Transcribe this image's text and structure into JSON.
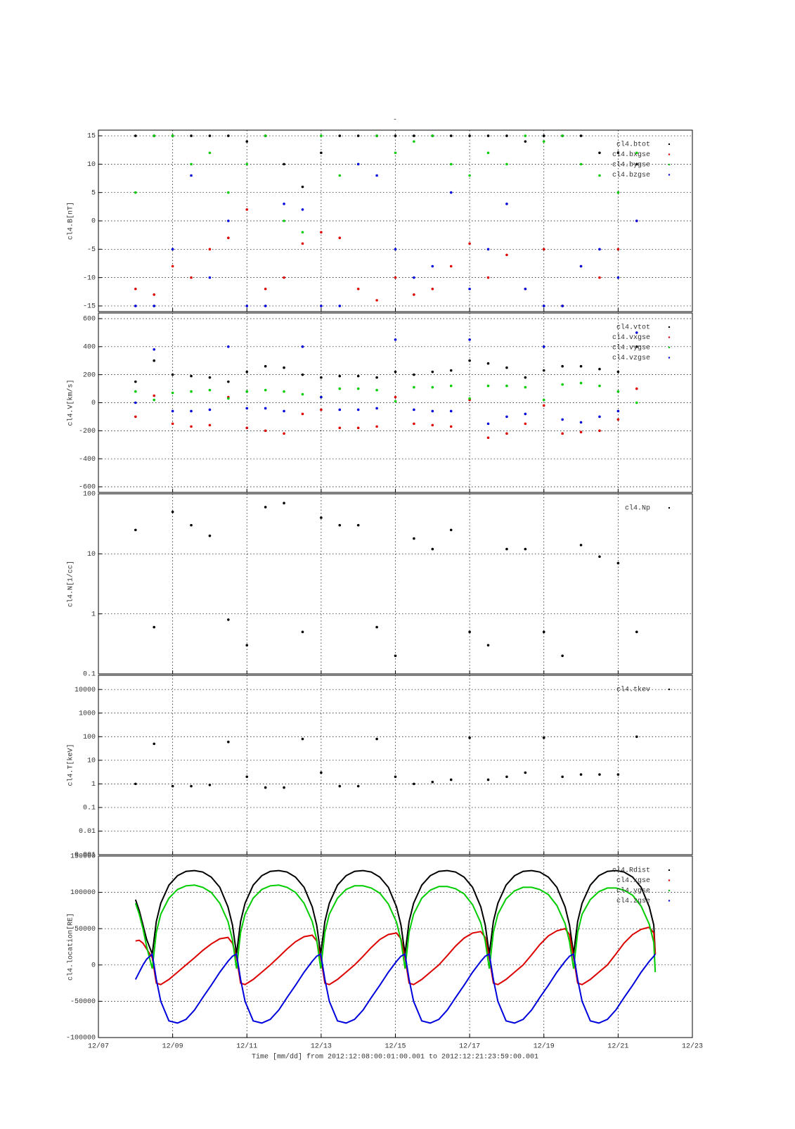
{
  "title": "-",
  "x_axis": {
    "label": "Time [mm/dd]  from 2012:12:08:00:01:00.001  to  2012:12:21:23:59:00.001",
    "xlim": [
      7,
      23
    ],
    "xticks": [
      {
        "value": 7,
        "label": "12/07"
      },
      {
        "value": 9,
        "label": "12/09"
      },
      {
        "value": 11,
        "label": "12/11"
      },
      {
        "value": 13,
        "label": "12/13"
      },
      {
        "value": 15,
        "label": "12/15"
      },
      {
        "value": 17,
        "label": "12/17"
      },
      {
        "value": 19,
        "label": "12/19"
      },
      {
        "value": 21,
        "label": "12/21"
      },
      {
        "value": 23,
        "label": "12/23"
      }
    ]
  },
  "chart_data": [
    {
      "type": "scatter",
      "y_label": "cl4.B[nT]",
      "ylim": [
        -16,
        16
      ],
      "yticks": [
        -15,
        -10,
        -5,
        0,
        5,
        10,
        15
      ],
      "grid": true,
      "x": [
        8,
        8.5,
        9,
        9.5,
        10,
        10.5,
        11,
        11.5,
        12,
        12.5,
        13,
        13.5,
        14,
        14.5,
        15,
        15.5,
        16,
        16.5,
        17,
        17.5,
        18,
        18.5,
        19,
        19.5,
        20,
        20.5,
        21,
        21.5,
        22
      ],
      "series": [
        {
          "name": "cl4.btot",
          "color": "#000000",
          "values": [
            15,
            15,
            15,
            15,
            15,
            15,
            14,
            15,
            10,
            6,
            12,
            15,
            15,
            15,
            15,
            15,
            15,
            15,
            15,
            15,
            15,
            14,
            15,
            15,
            15,
            12,
            12,
            10,
            null
          ]
        },
        {
          "name": "cl4.bxgse",
          "color": "#dd0000",
          "values": [
            -12,
            -13,
            -8,
            -10,
            -5,
            -3,
            2,
            -12,
            -10,
            -4,
            -2,
            -3,
            -12,
            -14,
            -10,
            -13,
            -12,
            -8,
            -4,
            -10,
            -6,
            -12,
            -5,
            -15,
            -8,
            -10,
            -5,
            0,
            null
          ]
        },
        {
          "name": "cl4.bygse",
          "color": "#00cc00",
          "values": [
            5,
            15,
            15,
            10,
            12,
            5,
            10,
            15,
            0,
            -2,
            15,
            8,
            10,
            15,
            12,
            14,
            15,
            10,
            8,
            12,
            10,
            15,
            14,
            15,
            10,
            8,
            5,
            12,
            null
          ]
        },
        {
          "name": "cl4.bzgse",
          "color": "#0000dd",
          "values": [
            -15,
            -15,
            -5,
            8,
            -10,
            0,
            -15,
            -15,
            3,
            2,
            -15,
            -15,
            10,
            8,
            -5,
            -10,
            -8,
            5,
            -12,
            -5,
            3,
            -12,
            -15,
            -15,
            -8,
            -5,
            -10,
            0,
            null
          ]
        }
      ]
    },
    {
      "type": "scatter",
      "y_label": "cl4.V[km/s]",
      "ylim": [
        -640,
        640
      ],
      "yticks": [
        -600,
        -400,
        -200,
        0,
        200,
        400,
        600
      ],
      "grid": true,
      "x": [
        8,
        8.5,
        9,
        9.5,
        10,
        10.5,
        11,
        11.5,
        12,
        12.5,
        13,
        13.5,
        14,
        14.5,
        15,
        15.5,
        16,
        16.5,
        17,
        17.5,
        18,
        18.5,
        19,
        19.5,
        20,
        20.5,
        21,
        21.5,
        22
      ],
      "series": [
        {
          "name": "cl4.vtot",
          "color": "#000000",
          "values": [
            150,
            300,
            200,
            190,
            180,
            150,
            220,
            260,
            250,
            200,
            180,
            190,
            190,
            180,
            220,
            200,
            220,
            230,
            300,
            280,
            250,
            180,
            230,
            260,
            260,
            240,
            220,
            400,
            null
          ]
        },
        {
          "name": "cl4.vxgse",
          "color": "#dd0000",
          "values": [
            -100,
            50,
            -150,
            -170,
            -160,
            40,
            -180,
            -200,
            -220,
            -80,
            -50,
            -180,
            -180,
            -170,
            40,
            -150,
            -160,
            -170,
            20,
            -250,
            -220,
            -150,
            -20,
            -220,
            -210,
            -200,
            -120,
            100,
            null
          ]
        },
        {
          "name": "cl4.vygse",
          "color": "#00cc00",
          "values": [
            80,
            20,
            70,
            80,
            90,
            30,
            80,
            90,
            80,
            60,
            40,
            100,
            100,
            90,
            10,
            110,
            110,
            120,
            30,
            120,
            120,
            110,
            20,
            130,
            140,
            120,
            80,
            0,
            null
          ]
        },
        {
          "name": "cl4.vzgse",
          "color": "#0000dd",
          "values": [
            0,
            380,
            -60,
            -60,
            -50,
            400,
            -40,
            -40,
            -60,
            400,
            40,
            -50,
            -50,
            -40,
            450,
            -50,
            -60,
            -60,
            450,
            -150,
            -100,
            -80,
            400,
            -120,
            -140,
            -100,
            -60,
            500,
            null
          ]
        }
      ]
    },
    {
      "type": "scatter",
      "y_label": "cl4.N[1/cc]",
      "log": true,
      "ylim": [
        0.1,
        100
      ],
      "yticks": [
        0.1,
        1,
        10,
        100
      ],
      "grid": true,
      "x": [
        8,
        8.5,
        9,
        9.5,
        10,
        10.5,
        11,
        11.5,
        12,
        12.5,
        13,
        13.5,
        14,
        14.5,
        15,
        15.5,
        16,
        16.5,
        17,
        17.5,
        18,
        18.5,
        19,
        19.5,
        20,
        20.5,
        21,
        21.5,
        22
      ],
      "series": [
        {
          "name": "cl4.Np",
          "color": "#000000",
          "values": [
            25,
            0.6,
            50,
            30,
            20,
            0.8,
            0.3,
            60,
            70,
            0.5,
            40,
            30,
            30,
            0.6,
            0.2,
            18,
            12,
            25,
            0.5,
            0.3,
            12,
            12,
            0.5,
            0.2,
            14,
            9,
            7,
            0.5,
            null
          ]
        }
      ]
    },
    {
      "type": "scatter",
      "y_label": "cl4.T[keV]",
      "log": true,
      "ylim": [
        0.001,
        40000
      ],
      "yticks": [
        0.001,
        0.01,
        0.1,
        1,
        10,
        100,
        1000,
        10000
      ],
      "grid": true,
      "x": [
        8,
        8.5,
        9,
        9.5,
        10,
        10.5,
        11,
        11.5,
        12,
        12.5,
        13,
        13.5,
        14,
        14.5,
        15,
        15.5,
        16,
        16.5,
        17,
        17.5,
        18,
        18.5,
        19,
        19.5,
        20,
        20.5,
        21,
        21.5,
        22
      ],
      "series": [
        {
          "name": "cl4.tkev",
          "color": "#000000",
          "values": [
            1,
            50,
            0.8,
            0.8,
            0.9,
            60,
            2,
            0.7,
            0.7,
            80,
            3,
            0.8,
            0.8,
            80,
            2,
            1,
            1.2,
            1.5,
            90,
            1.5,
            2,
            3,
            90,
            2,
            2.5,
            2.5,
            2.5,
            100,
            null
          ]
        }
      ]
    },
    {
      "type": "line",
      "y_label": "cl4.location[RE]",
      "ylim": [
        -100000,
        150000
      ],
      "yticks": [
        -100000,
        -50000,
        0,
        50000,
        100000,
        150000
      ],
      "grid": true,
      "x": [
        8,
        8.1,
        8.2,
        8.3,
        8.45,
        8.56,
        8.68,
        8.9,
        9.13,
        9.36,
        9.59,
        9.81,
        10.04,
        10.27,
        10.49,
        10.61,
        10.72,
        10.83,
        10.95,
        11.17,
        11.4,
        11.63,
        11.86,
        12.08,
        12.31,
        12.54,
        12.76,
        12.88,
        12.99,
        13.1,
        13.22,
        13.44,
        13.67,
        13.9,
        14.13,
        14.35,
        14.58,
        14.81,
        15.03,
        15.15,
        15.26,
        15.37,
        15.49,
        15.71,
        15.94,
        16.17,
        16.4,
        16.62,
        16.85,
        17.08,
        17.3,
        17.42,
        17.53,
        17.64,
        17.76,
        17.98,
        18.21,
        18.44,
        18.67,
        18.89,
        19.12,
        19.35,
        19.57,
        19.69,
        19.8,
        19.91,
        20.03,
        20.25,
        20.48,
        20.71,
        20.94,
        21.16,
        21.39,
        21.62,
        21.84,
        21.96,
        22
      ],
      "series": [
        {
          "name": "cl4.Rdist",
          "color": "#000000",
          "values": [
            90000,
            75000,
            55000,
            35000,
            15000,
            60000,
            85000,
            110000,
            123000,
            129000,
            130000,
            128000,
            121000,
            107000,
            80000,
            55000,
            15000,
            60000,
            85000,
            110000,
            123000,
            129000,
            130000,
            128000,
            121000,
            107000,
            80000,
            55000,
            15000,
            60000,
            85000,
            110000,
            123000,
            129000,
            130000,
            128000,
            121000,
            107000,
            80000,
            55000,
            15000,
            60000,
            85000,
            110000,
            123000,
            129000,
            130000,
            128000,
            121000,
            107000,
            80000,
            55000,
            15000,
            60000,
            85000,
            110000,
            123000,
            129000,
            130000,
            128000,
            121000,
            107000,
            80000,
            55000,
            15000,
            60000,
            85000,
            110000,
            123000,
            129000,
            130000,
            128000,
            121000,
            107000,
            80000,
            55000,
            15000
          ]
        },
        {
          "name": "cl4.xgse",
          "color": "#dd0000",
          "values": [
            33000,
            34000,
            30000,
            22000,
            10000,
            -25000,
            -27000,
            -20000,
            -10000,
            0,
            10000,
            20000,
            29000,
            36000,
            38000,
            30000,
            10000,
            -25000,
            -27000,
            -20000,
            -10000,
            0,
            11000,
            22000,
            32000,
            39000,
            41000,
            33000,
            10000,
            -25000,
            -27000,
            -20000,
            -10000,
            0,
            12000,
            24000,
            35000,
            42000,
            44000,
            36000,
            10000,
            -25000,
            -27000,
            -20000,
            -10000,
            0,
            13000,
            26000,
            37000,
            44000,
            46000,
            38000,
            10000,
            -25000,
            -27000,
            -20000,
            -10000,
            0,
            14000,
            28000,
            40000,
            47000,
            50000,
            42000,
            10000,
            -25000,
            -27000,
            -20000,
            -10000,
            0,
            15000,
            30000,
            42000,
            49000,
            52000,
            44000,
            15000
          ]
        },
        {
          "name": "cl4.ygse",
          "color": "#00cc00",
          "values": [
            85000,
            70000,
            50000,
            25000,
            -5000,
            45000,
            70000,
            92000,
            104000,
            109000,
            110000,
            107000,
            100000,
            85000,
            60000,
            35000,
            -5000,
            45000,
            70000,
            92000,
            104000,
            109000,
            110000,
            107000,
            100000,
            85000,
            60000,
            35000,
            -5000,
            45000,
            70000,
            92000,
            104000,
            109000,
            109000,
            106000,
            99000,
            84000,
            59000,
            34000,
            -5000,
            45000,
            70000,
            92000,
            103000,
            108000,
            108000,
            105000,
            98000,
            83000,
            58000,
            33000,
            -5000,
            45000,
            70000,
            91000,
            102000,
            107000,
            107000,
            104000,
            97000,
            82000,
            57000,
            32000,
            -5000,
            45000,
            70000,
            90000,
            101000,
            106000,
            106000,
            103000,
            96000,
            81000,
            56000,
            31000,
            -10000
          ]
        },
        {
          "name": "cl4.zgse",
          "color": "#0000dd",
          "values": [
            -20000,
            -10000,
            0,
            8000,
            15000,
            -20000,
            -50000,
            -77000,
            -80000,
            -75000,
            -62000,
            -45000,
            -28000,
            -10000,
            5000,
            12000,
            15000,
            -20000,
            -50000,
            -77000,
            -80000,
            -75000,
            -62000,
            -45000,
            -28000,
            -10000,
            5000,
            12000,
            15000,
            -20000,
            -50000,
            -77000,
            -80000,
            -75000,
            -62000,
            -45000,
            -28000,
            -10000,
            5000,
            12000,
            15000,
            -20000,
            -50000,
            -77000,
            -80000,
            -75000,
            -62000,
            -45000,
            -28000,
            -10000,
            5000,
            12000,
            15000,
            -20000,
            -50000,
            -77000,
            -80000,
            -75000,
            -62000,
            -45000,
            -28000,
            -10000,
            5000,
            12000,
            15000,
            -20000,
            -50000,
            -77000,
            -80000,
            -75000,
            -62000,
            -45000,
            -28000,
            -10000,
            5000,
            12000,
            15000
          ]
        }
      ]
    }
  ]
}
